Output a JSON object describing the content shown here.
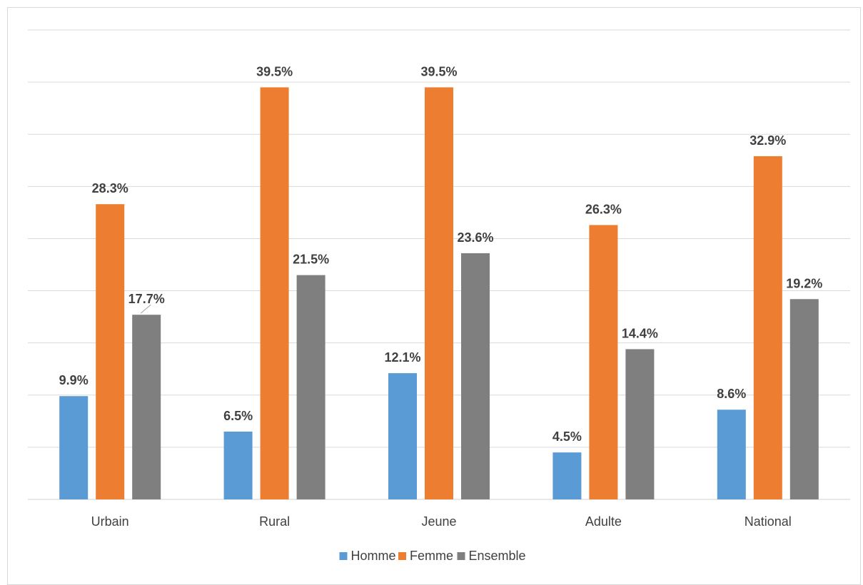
{
  "chart_data": {
    "type": "bar",
    "categories": [
      "Urbain",
      "Rural",
      "Jeune",
      "Adulte",
      "National"
    ],
    "series": [
      {
        "name": "Homme",
        "color": "#5b9bd5",
        "values": [
          9.9,
          6.5,
          12.1,
          4.5,
          8.6
        ],
        "labels": [
          "9.9%",
          "6.5%",
          "12.1%",
          "4.5%",
          "8.6%"
        ]
      },
      {
        "name": "Femme",
        "color": "#ed7d31",
        "values": [
          28.3,
          39.5,
          39.5,
          26.3,
          32.9
        ],
        "labels": [
          "28.3%",
          "39.5%",
          "39.5%",
          "26.3%",
          "32.9%"
        ]
      },
      {
        "name": "Ensemble",
        "color": "#7f7f7f",
        "values": [
          17.7,
          21.5,
          23.6,
          14.4,
          19.2
        ],
        "labels": [
          "17.7%",
          "21.5%",
          "23.6%",
          "14.4%",
          "19.2%"
        ]
      }
    ],
    "ylim": [
      0,
      45
    ],
    "ytick_step": 5,
    "grid": true,
    "legend": "bottom",
    "data_labels": true,
    "title": "",
    "xlabel": "",
    "ylabel": ""
  }
}
